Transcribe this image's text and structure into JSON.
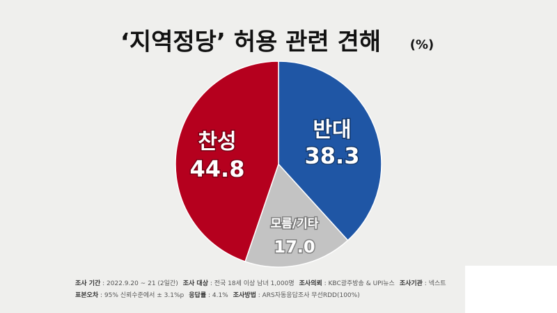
{
  "chart_data": {
    "type": "pie",
    "title": "‘지역정당’ 허용 관련 견해",
    "unit": "(%)",
    "categories": [
      "반대",
      "모름/기타",
      "찬성"
    ],
    "values": [
      38.3,
      17.0,
      44.8
    ],
    "value_labels": [
      "38.3",
      "17.0",
      "44.8"
    ],
    "colors": [
      "#1f56a5",
      "#c3c3c3",
      "#b5001e"
    ],
    "footnotes": [
      [
        {
          "label": "조사 기간",
          "text": " : 2022.9.20 ~ 21 (2일간)"
        },
        {
          "label": "조사 대상",
          "text": " : 전국 18세 이상 남녀 1,000명"
        },
        {
          "label": "조사의뢰",
          "text": " : KBC광주방송 & UPI뉴스"
        },
        {
          "label": "조사기관",
          "text": " : 넥스트"
        }
      ],
      [
        {
          "label": "표본오차",
          "text": " : 95% 신뢰수준에서 ± 3.1%p"
        },
        {
          "label": "응답률",
          "text": " : 4.1%"
        },
        {
          "label": "조사방법",
          "text": " : ARS자동응답조사 무선RDD(100%)"
        }
      ]
    ]
  }
}
